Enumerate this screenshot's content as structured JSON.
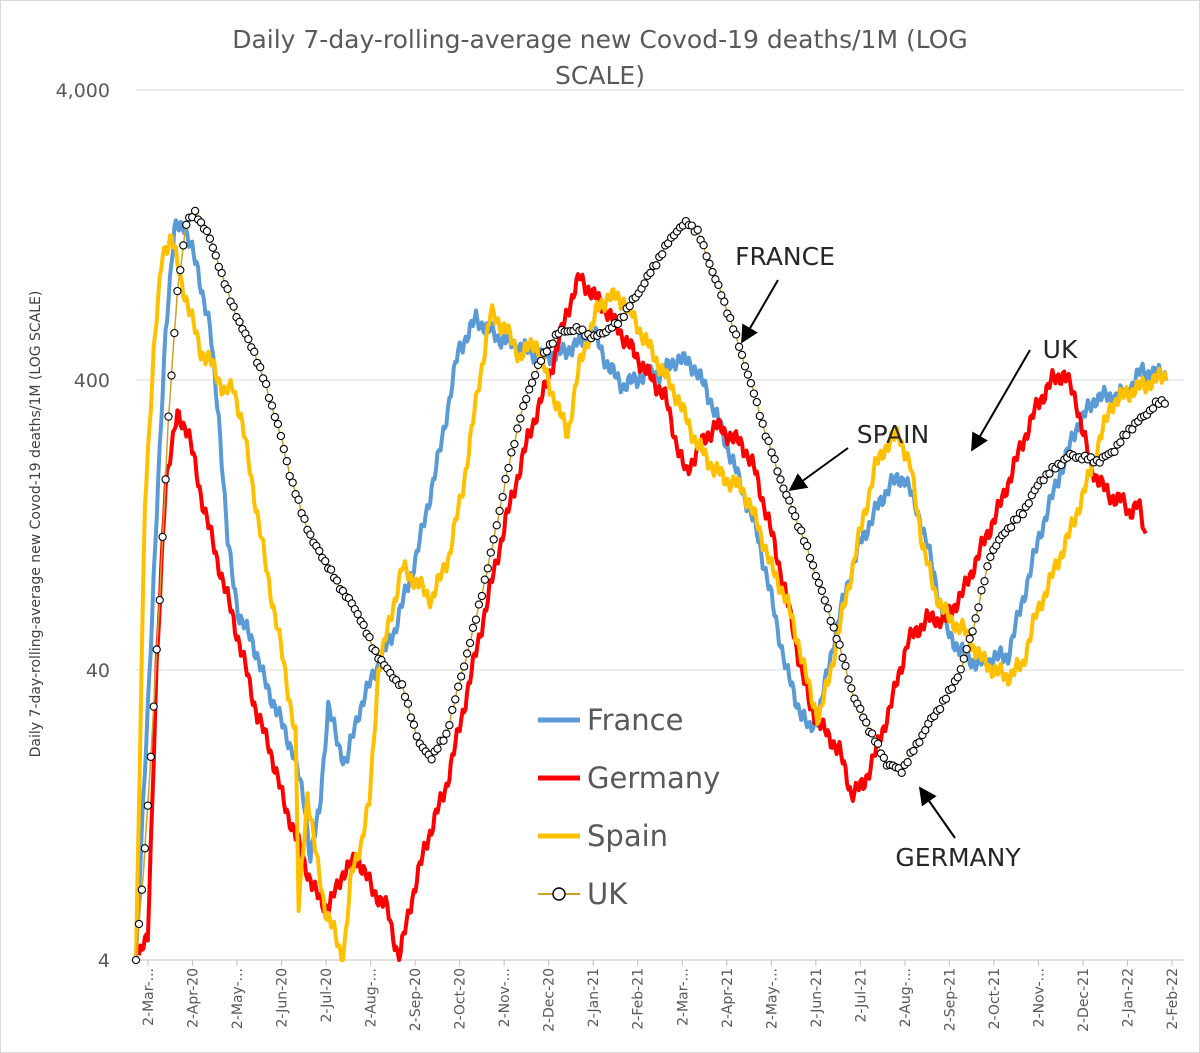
{
  "chart_data": {
    "type": "line",
    "title": "Daily 7-day-rolling-average new Covod-19 deaths/1M (LOG SCALE)",
    "title_line1": "Daily 7-day-rolling-average new Covod-19 deaths/1M (LOG",
    "title_line2": "SCALE)",
    "ylabel": "Daily 7-day-rolling-average new Covod-19 deaths/1M (LOG SCALE)",
    "xlabel": "",
    "yscale": "log",
    "ylim": [
      4,
      4000
    ],
    "yticks": [
      4,
      40,
      400,
      4000
    ],
    "ytick_labels": [
      "4",
      "40",
      "400",
      "4,000"
    ],
    "x_start": "2020-03-02",
    "x_end": "2022-02-10",
    "x_tick_labels": [
      "2-Mar-...",
      "2-Apr-20",
      "2-May-...",
      "2-Jun-20",
      "2-Jul-20",
      "2-Aug-...",
      "2-Sep-20",
      "2-Oct-20",
      "2-Nov-...",
      "2-Dec-20",
      "2-Jan-21",
      "2-Feb-21",
      "2-Mar-...",
      "2-Apr-21",
      "2-May-...",
      "2-Jun-21",
      "2-Jul-21",
      "2-Aug-...",
      "2-Sep-21",
      "2-Oct-21",
      "2-Nov-...",
      "2-Dec-21",
      "2-Jan-22",
      "2-Feb-22"
    ],
    "legend_position": "center",
    "series": [
      {
        "name": "France",
        "color": "#5b9bd5",
        "marker": "none",
        "points": [
          [
            0,
            4
          ],
          [
            10,
            50
          ],
          [
            20,
            600
          ],
          [
            26,
            1300
          ],
          [
            32,
            1400
          ],
          [
            42,
            950
          ],
          [
            50,
            600
          ],
          [
            56,
            300
          ],
          [
            62,
            110
          ],
          [
            70,
            60
          ],
          [
            78,
            52
          ],
          [
            86,
            38
          ],
          [
            94,
            30
          ],
          [
            106,
            21
          ],
          [
            114,
            14
          ],
          [
            118,
            9
          ],
          [
            124,
            13
          ],
          [
            130,
            30
          ],
          [
            137,
            22
          ],
          [
            142,
            19
          ],
          [
            150,
            28
          ],
          [
            160,
            38
          ],
          [
            175,
            55
          ],
          [
            190,
            100
          ],
          [
            205,
            220
          ],
          [
            218,
            500
          ],
          [
            230,
            650
          ],
          [
            245,
            560
          ],
          [
            260,
            520
          ],
          [
            275,
            480
          ],
          [
            290,
            500
          ],
          [
            310,
            580
          ],
          [
            320,
            440
          ],
          [
            330,
            380
          ],
          [
            345,
            420
          ],
          [
            355,
            420
          ],
          [
            365,
            470
          ],
          [
            375,
            460
          ],
          [
            385,
            380
          ],
          [
            395,
            280
          ],
          [
            405,
            200
          ],
          [
            420,
            120
          ],
          [
            430,
            70
          ],
          [
            440,
            40
          ],
          [
            448,
            30
          ],
          [
            455,
            25
          ],
          [
            462,
            28
          ],
          [
            470,
            45
          ],
          [
            480,
            75
          ],
          [
            490,
            110
          ],
          [
            500,
            140
          ],
          [
            510,
            175
          ],
          [
            520,
            185
          ],
          [
            530,
            135
          ],
          [
            538,
            95
          ],
          [
            548,
            55
          ],
          [
            560,
            45
          ],
          [
            570,
            42
          ],
          [
            580,
            44
          ],
          [
            590,
            45
          ],
          [
            600,
            70
          ],
          [
            612,
            120
          ],
          [
            625,
            190
          ],
          [
            637,
            280
          ],
          [
            650,
            350
          ],
          [
            660,
            350
          ],
          [
            670,
            360
          ],
          [
            680,
            430
          ],
          [
            690,
            420
          ],
          [
            697,
            420
          ]
        ]
      },
      {
        "name": "Germany",
        "color": "#ff0000",
        "marker": "none",
        "points": [
          [
            2,
            4
          ],
          [
            8,
            5
          ],
          [
            14,
            40
          ],
          [
            20,
            180
          ],
          [
            28,
            300
          ],
          [
            35,
            270
          ],
          [
            44,
            160
          ],
          [
            54,
            100
          ],
          [
            64,
            65
          ],
          [
            72,
            45
          ],
          [
            82,
            28
          ],
          [
            90,
            22
          ],
          [
            100,
            14
          ],
          [
            110,
            10
          ],
          [
            120,
            7
          ],
          [
            130,
            6
          ],
          [
            140,
            8
          ],
          [
            150,
            9
          ],
          [
            160,
            7
          ],
          [
            170,
            6
          ],
          [
            178,
            4
          ],
          [
            185,
            6
          ],
          [
            196,
            10
          ],
          [
            210,
            16
          ],
          [
            222,
            30
          ],
          [
            235,
            60
          ],
          [
            250,
            130
          ],
          [
            265,
            250
          ],
          [
            280,
            420
          ],
          [
            292,
            700
          ],
          [
            300,
            900
          ],
          [
            310,
            780
          ],
          [
            318,
            700
          ],
          [
            330,
            560
          ],
          [
            345,
            430
          ],
          [
            358,
            350
          ],
          [
            365,
            250
          ],
          [
            372,
            190
          ],
          [
            380,
            230
          ],
          [
            392,
            280
          ],
          [
            400,
            260
          ],
          [
            410,
            240
          ],
          [
            418,
            200
          ],
          [
            428,
            130
          ],
          [
            438,
            80
          ],
          [
            448,
            45
          ],
          [
            456,
            30
          ],
          [
            465,
            25
          ],
          [
            476,
            21
          ],
          [
            484,
            15
          ],
          [
            492,
            16
          ],
          [
            502,
            22
          ],
          [
            512,
            32
          ],
          [
            522,
            50
          ],
          [
            535,
            60
          ],
          [
            548,
            60
          ],
          [
            560,
            75
          ],
          [
            570,
            100
          ],
          [
            585,
            150
          ],
          [
            598,
            230
          ],
          [
            610,
            330
          ],
          [
            620,
            400
          ],
          [
            628,
            420
          ],
          [
            636,
            340
          ],
          [
            646,
            200
          ],
          [
            658,
            160
          ],
          [
            666,
            155
          ],
          [
            672,
            140
          ],
          [
            678,
            150
          ],
          [
            683,
            115
          ]
        ]
      },
      {
        "name": "Spain",
        "color": "#ffc000",
        "marker": "none",
        "points": [
          [
            0,
            4
          ],
          [
            6,
            150
          ],
          [
            12,
            500
          ],
          [
            18,
            1100
          ],
          [
            24,
            1250
          ],
          [
            30,
            900
          ],
          [
            36,
            700
          ],
          [
            44,
            500
          ],
          [
            52,
            450
          ],
          [
            60,
            360
          ],
          [
            66,
            380
          ],
          [
            72,
            280
          ],
          [
            80,
            160
          ],
          [
            88,
            90
          ],
          [
            96,
            55
          ],
          [
            102,
            36
          ],
          [
            108,
            24
          ],
          [
            110,
            6
          ],
          [
            116,
            15
          ],
          [
            122,
            9
          ],
          [
            128,
            6
          ],
          [
            134,
            5
          ],
          [
            140,
            4
          ],
          [
            146,
            8
          ],
          [
            152,
            10
          ],
          [
            158,
            14
          ],
          [
            164,
            40
          ],
          [
            172,
            60
          ],
          [
            180,
            90
          ],
          [
            190,
            80
          ],
          [
            200,
            70
          ],
          [
            212,
            100
          ],
          [
            222,
            180
          ],
          [
            232,
            390
          ],
          [
            240,
            680
          ],
          [
            250,
            600
          ],
          [
            260,
            480
          ],
          [
            270,
            550
          ],
          [
            280,
            380
          ],
          [
            292,
            260
          ],
          [
            300,
            450
          ],
          [
            312,
            700
          ],
          [
            320,
            780
          ],
          [
            330,
            750
          ],
          [
            342,
            580
          ],
          [
            354,
            450
          ],
          [
            366,
            350
          ],
          [
            378,
            250
          ],
          [
            390,
            200
          ],
          [
            400,
            180
          ],
          [
            410,
            170
          ],
          [
            420,
            130
          ],
          [
            430,
            90
          ],
          [
            440,
            70
          ],
          [
            448,
            50
          ],
          [
            455,
            35
          ],
          [
            462,
            27
          ],
          [
            470,
            40
          ],
          [
            480,
            70
          ],
          [
            490,
            120
          ],
          [
            500,
            200
          ],
          [
            508,
            240
          ],
          [
            516,
            260
          ],
          [
            524,
            200
          ],
          [
            532,
            110
          ],
          [
            540,
            75
          ],
          [
            550,
            60
          ],
          [
            560,
            55
          ],
          [
            570,
            45
          ],
          [
            580,
            40
          ],
          [
            590,
            38
          ],
          [
            600,
            42
          ],
          [
            608,
            60
          ],
          [
            620,
            85
          ],
          [
            632,
            120
          ],
          [
            644,
            180
          ],
          [
            652,
            250
          ],
          [
            660,
            330
          ],
          [
            670,
            360
          ],
          [
            680,
            380
          ],
          [
            690,
            400
          ],
          [
            697,
            420
          ]
        ]
      },
      {
        "name": "UK",
        "color": "#000000",
        "marker": "circle",
        "points": [
          [
            0,
            4
          ],
          [
            5,
            8
          ],
          [
            10,
            20
          ],
          [
            16,
            70
          ],
          [
            22,
            300
          ],
          [
            28,
            800
          ],
          [
            34,
            1400
          ],
          [
            40,
            1500
          ],
          [
            48,
            1300
          ],
          [
            56,
            1000
          ],
          [
            64,
            750
          ],
          [
            72,
            600
          ],
          [
            80,
            500
          ],
          [
            88,
            380
          ],
          [
            96,
            280
          ],
          [
            104,
            190
          ],
          [
            112,
            140
          ],
          [
            120,
            110
          ],
          [
            128,
            95
          ],
          [
            136,
            80
          ],
          [
            144,
            70
          ],
          [
            152,
            60
          ],
          [
            160,
            48
          ],
          [
            170,
            40
          ],
          [
            180,
            35
          ],
          [
            186,
            28
          ],
          [
            192,
            22
          ],
          [
            200,
            20
          ],
          [
            210,
            24
          ],
          [
            220,
            38
          ],
          [
            230,
            60
          ],
          [
            240,
            100
          ],
          [
            250,
            180
          ],
          [
            260,
            300
          ],
          [
            272,
            450
          ],
          [
            285,
            580
          ],
          [
            298,
            600
          ],
          [
            310,
            560
          ],
          [
            325,
            620
          ],
          [
            340,
            800
          ],
          [
            356,
            1100
          ],
          [
            365,
            1300
          ],
          [
            373,
            1400
          ],
          [
            380,
            1300
          ],
          [
            390,
            950
          ],
          [
            402,
            650
          ],
          [
            414,
            420
          ],
          [
            426,
            260
          ],
          [
            438,
            170
          ],
          [
            450,
            120
          ],
          [
            462,
            80
          ],
          [
            474,
            52
          ],
          [
            486,
            32
          ],
          [
            496,
            25
          ],
          [
            508,
            19
          ],
          [
            518,
            18
          ],
          [
            528,
            22
          ],
          [
            538,
            27
          ],
          [
            548,
            32
          ],
          [
            558,
            40
          ],
          [
            568,
            60
          ],
          [
            578,
            100
          ],
          [
            588,
            120
          ],
          [
            600,
            140
          ],
          [
            612,
            180
          ],
          [
            622,
            200
          ],
          [
            632,
            220
          ],
          [
            642,
            215
          ],
          [
            652,
            210
          ],
          [
            662,
            230
          ],
          [
            672,
            270
          ],
          [
            682,
            300
          ],
          [
            690,
            330
          ],
          [
            697,
            340
          ]
        ]
      }
    ],
    "annotations": [
      {
        "label": "FRANCE"
      },
      {
        "label": "UK"
      },
      {
        "label": "SPAIN"
      },
      {
        "label": "GERMANY"
      }
    ]
  }
}
